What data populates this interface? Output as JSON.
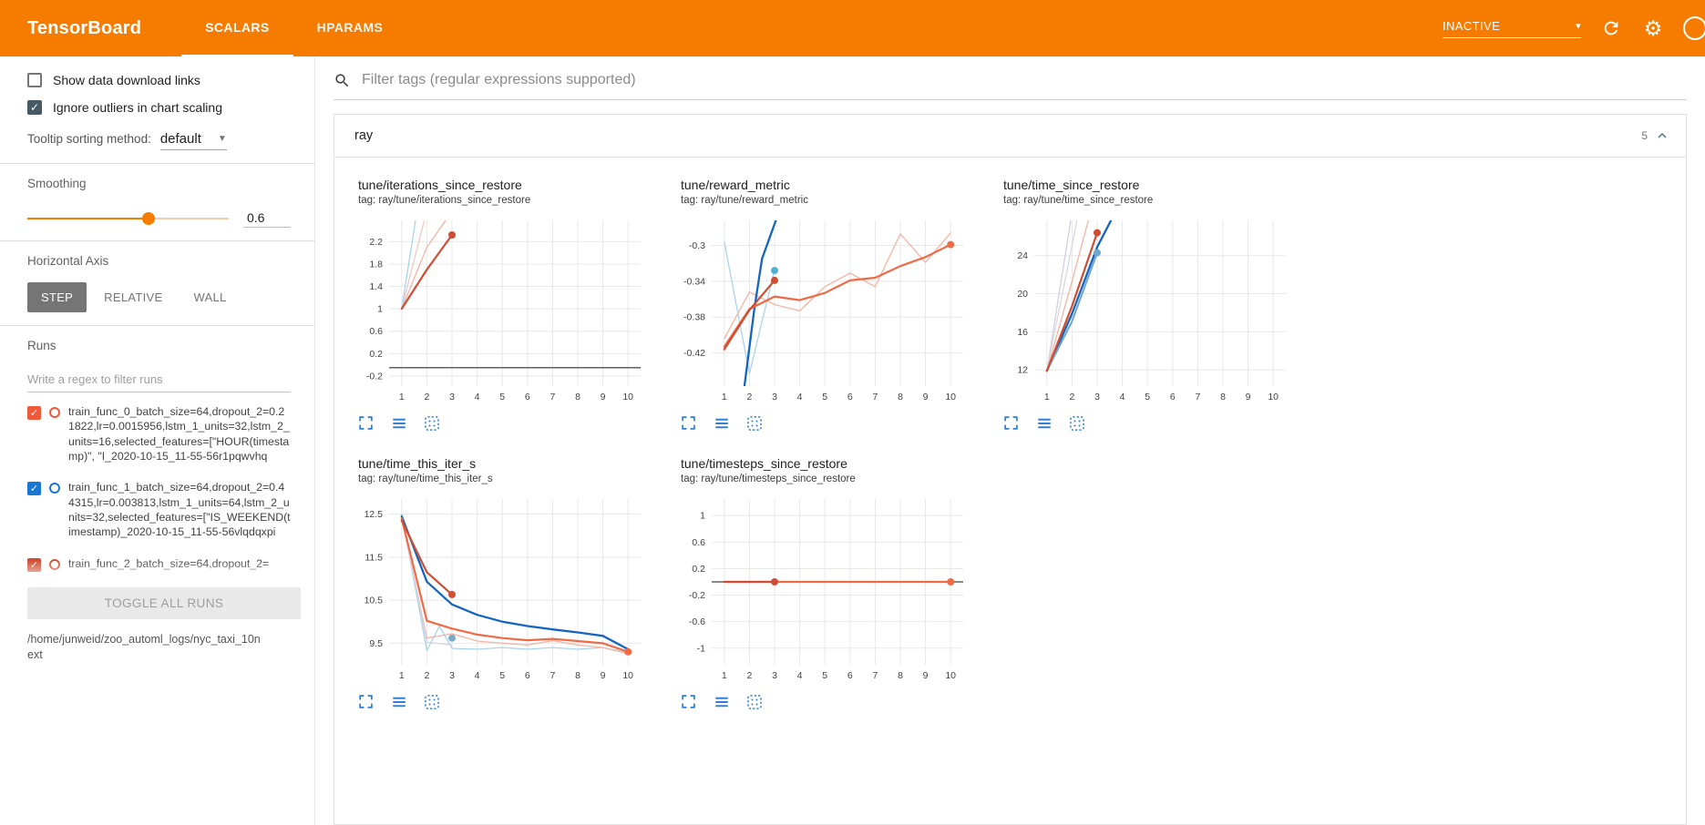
{
  "header": {
    "title": "TensorBoard",
    "tabs": [
      {
        "label": "SCALARS",
        "active": true
      },
      {
        "label": "HPARAMS",
        "active": false
      }
    ],
    "status": "INACTIVE",
    "accent_color": "#f57c00"
  },
  "sidebar": {
    "show_data_download_links": {
      "label": "Show data download links",
      "checked": false
    },
    "ignore_outliers": {
      "label": "Ignore outliers in chart scaling",
      "checked": true
    },
    "tooltip_sorting": {
      "label": "Tooltip sorting method:",
      "value": "default"
    },
    "smoothing": {
      "label": "Smoothing",
      "value": "0.6"
    },
    "horizontal_axis": {
      "label": "Horizontal Axis",
      "options": [
        "STEP",
        "RELATIVE",
        "WALL"
      ],
      "selected": "STEP"
    },
    "runs": {
      "label": "Runs",
      "filter_placeholder": "Write a regex to filter runs",
      "items": [
        {
          "label": "train_func_0_batch_size=64,dropout_2=0.21822,lr=0.0015956,lstm_1_units=32,lstm_2_units=16,selected_features=[\"HOUR(timestamp)\", \"I_2020-10-15_11-55-56r1pqwvhq",
          "checked": true,
          "color": "#f0583a"
        },
        {
          "label": "train_func_1_batch_size=64,dropout_2=0.44315,lr=0.003813,lstm_1_units=64,lstm_2_units=32,selected_features=[\"IS_WEEKEND(timestamp)_2020-10-15_11-55-56vlqdqxpi",
          "checked": true,
          "color": "#1976d2"
        },
        {
          "label": "train_func_2_batch_size=64,dropout_2=",
          "checked": true,
          "color": "#cf4d33"
        }
      ],
      "toggle_all_label": "TOGGLE ALL RUNS",
      "log_path": "/home/junweid/zoo_automl_logs/nyc_taxi_10next"
    }
  },
  "main": {
    "filter_placeholder": "Filter tags (regular expressions supported)",
    "section": {
      "title": "ray",
      "count": "5"
    }
  },
  "chart_data": [
    {
      "type": "line",
      "title": "tune/iterations_since_restore",
      "tag": "tag: ray/tune/iterations_since_restore",
      "xlim": [
        0.5,
        10.5
      ],
      "ylim": [
        -0.38,
        2.58
      ],
      "xticks": [
        1,
        2,
        3,
        4,
        5,
        6,
        7,
        8,
        9,
        10
      ],
      "yticks": [
        -0.2,
        0.2,
        0.6,
        1,
        1.4,
        1.8,
        2.2
      ],
      "series": [
        {
          "name": "flat-zero-run",
          "color": "#616161",
          "width": 1.5,
          "opacity": 1,
          "points": [
            [
              0.5,
              -0.05
            ],
            [
              10.5,
              -0.05
            ]
          ]
        },
        {
          "name": "run0-raw",
          "color": "#f2b4a4",
          "width": 1.3,
          "opacity": 1,
          "points": [
            [
              1,
              1
            ],
            [
              2,
              2.1
            ],
            [
              2.75,
              2.58
            ]
          ]
        },
        {
          "name": "run2-raw",
          "color": "#e9cbc3",
          "width": 1.3,
          "opacity": 1,
          "points": [
            [
              1,
              1
            ],
            [
              1.9,
              2.58
            ]
          ]
        },
        {
          "name": "run1-raw",
          "color": "#a9d3ea",
          "width": 1.3,
          "opacity": 1,
          "points": [
            [
              1,
              1
            ],
            [
              1.55,
              2.58
            ]
          ]
        },
        {
          "name": "run0-smoothed",
          "color": "#cf4d33",
          "width": 2.2,
          "opacity": 1,
          "end_dot": true,
          "points": [
            [
              1,
              1
            ],
            [
              2,
              1.7
            ],
            [
              3,
              2.32
            ]
          ]
        }
      ]
    },
    {
      "type": "line",
      "title": "tune/reward_metric",
      "tag": "tag: ray/tune/reward_metric",
      "xlim": [
        0.5,
        10.5
      ],
      "ylim": [
        -0.457,
        -0.272
      ],
      "xticks": [
        1,
        2,
        3,
        4,
        5,
        6,
        7,
        8,
        9,
        10
      ],
      "yticks": [
        -0.42,
        -0.38,
        -0.34,
        -0.3
      ],
      "series": [
        {
          "name": "run1-raw",
          "color": "#a9d3ea",
          "width": 1.3,
          "opacity": 1,
          "points": [
            [
              1,
              -0.296
            ],
            [
              2,
              -0.443
            ],
            [
              3,
              -0.327
            ]
          ]
        },
        {
          "name": "run2-raw",
          "color": "#f2b4a4",
          "width": 1.3,
          "opacity": 1,
          "points": [
            [
              1,
              -0.404
            ],
            [
              2,
              -0.352
            ],
            [
              3,
              -0.366
            ],
            [
              4,
              -0.373
            ],
            [
              5,
              -0.346
            ],
            [
              6,
              -0.331
            ],
            [
              7,
              -0.346
            ],
            [
              8,
              -0.287
            ],
            [
              9,
              -0.319
            ],
            [
              10,
              -0.286
            ]
          ]
        },
        {
          "name": "run1-smoothed",
          "color": "#1565c0",
          "width": 2.3,
          "opacity": 1,
          "points": [
            [
              1.8,
              -0.457
            ],
            [
              2.2,
              -0.37
            ],
            [
              2.5,
              -0.315
            ],
            [
              3.05,
              -0.272
            ]
          ]
        },
        {
          "name": "run2-smoothed",
          "color": "#ef6a45",
          "width": 2.2,
          "opacity": 1,
          "end_dot": true,
          "points": [
            [
              1,
              -0.413
            ],
            [
              2,
              -0.371
            ],
            [
              3,
              -0.357
            ],
            [
              4,
              -0.361
            ],
            [
              5,
              -0.353
            ],
            [
              6,
              -0.339
            ],
            [
              7,
              -0.336
            ],
            [
              8,
              -0.323
            ],
            [
              9,
              -0.313
            ],
            [
              10,
              -0.299
            ]
          ]
        },
        {
          "name": "run0-smoothed",
          "color": "#cf4d33",
          "width": 2.2,
          "opacity": 1,
          "end_dot": true,
          "points": [
            [
              1,
              -0.416
            ],
            [
              2,
              -0.372
            ],
            [
              3,
              -0.339
            ]
          ]
        },
        {
          "name": "run1b-endpoint",
          "color": "#52b0d2",
          "width": 2,
          "opacity": 1,
          "end_dot": true,
          "points": [
            [
              3,
              -0.328
            ]
          ]
        }
      ]
    },
    {
      "type": "line",
      "title": "tune/time_since_restore",
      "tag": "tag: ray/tune/time_since_restore",
      "xlim": [
        0.5,
        10.5
      ],
      "ylim": [
        10.3,
        27.7
      ],
      "xticks": [
        1,
        2,
        3,
        4,
        5,
        6,
        7,
        8,
        9,
        10
      ],
      "yticks": [
        12,
        16,
        20,
        24
      ],
      "series": [
        {
          "name": "raw-lavender",
          "color": "#cfcfe2",
          "width": 1.3,
          "opacity": 1,
          "points": [
            [
              1,
              11.9
            ],
            [
              1.95,
              27.7
            ]
          ]
        },
        {
          "name": "raw-gray",
          "color": "#d9d9d9",
          "width": 1.3,
          "opacity": 1,
          "points": [
            [
              1,
              11.9
            ],
            [
              2.2,
              27.7
            ]
          ]
        },
        {
          "name": "raw-salmon",
          "color": "#f2b4a4",
          "width": 1.3,
          "opacity": 1,
          "points": [
            [
              1,
              11.9
            ],
            [
              2,
              21.3
            ],
            [
              2.65,
              27.7
            ]
          ]
        },
        {
          "name": "run1-smoothed",
          "color": "#1565c0",
          "width": 2.3,
          "opacity": 1,
          "points": [
            [
              1,
              11.9
            ],
            [
              2,
              17.9
            ],
            [
              3,
              24.9
            ],
            [
              3.55,
              27.7
            ]
          ]
        },
        {
          "name": "run1b-smoothed",
          "color": "#6fa8cc",
          "width": 2,
          "opacity": 1,
          "end_dot": true,
          "points": [
            [
              1,
              11.9
            ],
            [
              2,
              17.1
            ],
            [
              3,
              24.3
            ]
          ]
        },
        {
          "name": "run0-smoothed",
          "color": "#cf4d33",
          "width": 2.2,
          "opacity": 1,
          "end_dot": true,
          "points": [
            [
              1,
              11.9
            ],
            [
              2,
              18.7
            ],
            [
              3,
              26.4
            ]
          ]
        }
      ]
    },
    {
      "type": "line",
      "title": "tune/time_this_iter_s",
      "tag": "tag: ray/tune/time_this_iter_s",
      "xlim": [
        0.5,
        10.5
      ],
      "ylim": [
        9.0,
        12.85
      ],
      "xticks": [
        1,
        2,
        3,
        4,
        5,
        6,
        7,
        8,
        9,
        10
      ],
      "yticks": [
        9.5,
        10.5,
        11.5,
        12.5
      ],
      "series": [
        {
          "name": "run1-raw",
          "color": "#a9d3ea",
          "width": 1.3,
          "opacity": 1,
          "points": [
            [
              1,
              12.5
            ],
            [
              2,
              9.33
            ],
            [
              2.5,
              9.9
            ],
            [
              3,
              9.38
            ],
            [
              4,
              9.36
            ],
            [
              5,
              9.4
            ],
            [
              6,
              9.36
            ],
            [
              7,
              9.4
            ],
            [
              8,
              9.36
            ],
            [
              9,
              9.4
            ],
            [
              10,
              9.28
            ]
          ]
        },
        {
          "name": "run2-raw",
          "color": "#f2b4a4",
          "width": 1.3,
          "opacity": 1,
          "points": [
            [
              1,
              12.4
            ],
            [
              2,
              9.62
            ],
            [
              3,
              9.72
            ],
            [
              4,
              9.55
            ],
            [
              5,
              9.5
            ],
            [
              6,
              9.46
            ],
            [
              7,
              9.56
            ],
            [
              8,
              9.46
            ],
            [
              9,
              9.4
            ],
            [
              10,
              9.26
            ]
          ]
        },
        {
          "name": "run0-raw",
          "color": "#d9d4e4",
          "width": 1.3,
          "opacity": 1,
          "points": [
            [
              1,
              12.45
            ],
            [
              2,
              9.52
            ],
            [
              3,
              9.46
            ]
          ]
        },
        {
          "name": "run1-smoothed",
          "color": "#1565c0",
          "width": 2.3,
          "opacity": 1,
          "points": [
            [
              1,
              12.45
            ],
            [
              2,
              10.93
            ],
            [
              3,
              10.4
            ],
            [
              4,
              10.16
            ],
            [
              5,
              10.0
            ],
            [
              6,
              9.9
            ],
            [
              7,
              9.82
            ],
            [
              8,
              9.75
            ],
            [
              9,
              9.67
            ],
            [
              10,
              9.36
            ]
          ]
        },
        {
          "name": "run2-smoothed",
          "color": "#ef6a45",
          "width": 2.2,
          "opacity": 1,
          "end_dot": true,
          "points": [
            [
              1,
              12.4
            ],
            [
              2,
              10.02
            ],
            [
              3,
              9.84
            ],
            [
              4,
              9.7
            ],
            [
              5,
              9.62
            ],
            [
              6,
              9.57
            ],
            [
              7,
              9.6
            ],
            [
              8,
              9.55
            ],
            [
              9,
              9.5
            ],
            [
              10,
              9.3
            ]
          ]
        },
        {
          "name": "run0-smoothed",
          "color": "#cf4d33",
          "width": 2.2,
          "opacity": 1,
          "end_dot": true,
          "points": [
            [
              1,
              12.35
            ],
            [
              2,
              11.15
            ],
            [
              3,
              10.63
            ]
          ]
        },
        {
          "name": "run1b-endpoint",
          "color": "#7ba9c6",
          "width": 2,
          "opacity": 1,
          "end_dot": true,
          "points": [
            [
              3,
              9.62
            ]
          ]
        }
      ]
    },
    {
      "type": "line",
      "title": "tune/timesteps_since_restore",
      "tag": "tag: ray/tune/timesteps_since_restore",
      "xlim": [
        0.5,
        10.5
      ],
      "ylim": [
        -1.25,
        1.25
      ],
      "xticks": [
        1,
        2,
        3,
        4,
        5,
        6,
        7,
        8,
        9,
        10
      ],
      "yticks": [
        -1,
        -0.6,
        -0.2,
        0.2,
        0.6,
        1
      ],
      "series": [
        {
          "name": "flat-gray",
          "color": "#616161",
          "width": 1.5,
          "opacity": 1,
          "points": [
            [
              0.5,
              0
            ],
            [
              10.5,
              0
            ]
          ]
        },
        {
          "name": "run2-smoothed",
          "color": "#ef6a45",
          "width": 2.2,
          "opacity": 1,
          "end_dot": true,
          "points": [
            [
              1,
              0
            ],
            [
              10,
              0
            ]
          ]
        },
        {
          "name": "run0-smoothed",
          "color": "#cf4d33",
          "width": 2.2,
          "opacity": 1,
          "end_dot": true,
          "points": [
            [
              1,
              0
            ],
            [
              3,
              0
            ]
          ]
        }
      ]
    }
  ]
}
